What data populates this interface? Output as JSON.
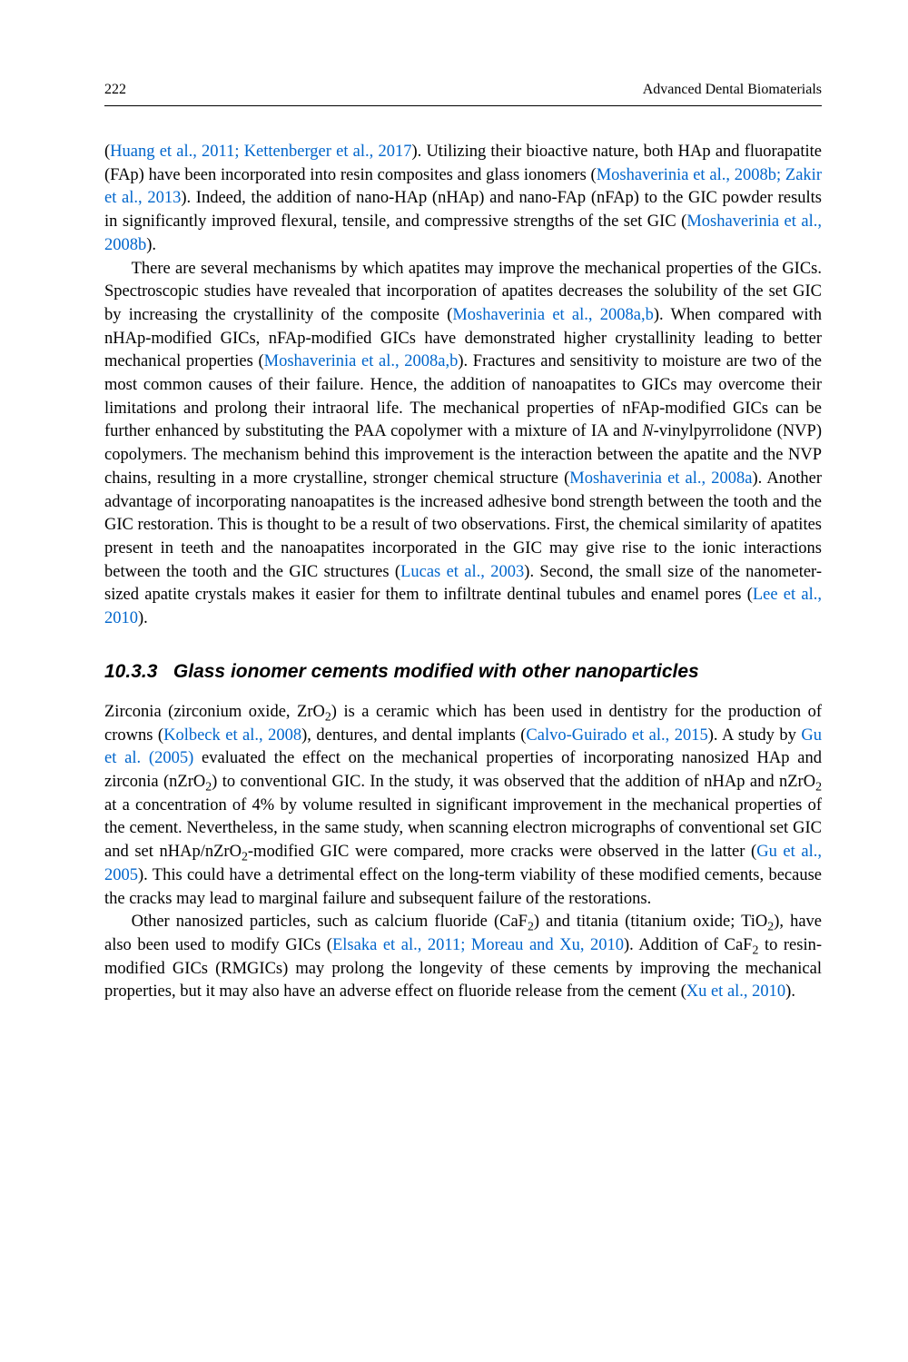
{
  "page": {
    "number": "222",
    "book_title": "Advanced Dental Biomaterials"
  },
  "section": {
    "number": "10.3.3",
    "title": "Glass ionomer cements modified with other nanoparticles"
  },
  "citations": {
    "huang2011": "Huang et al., 2011; Kettenberger et al., 2017",
    "moshaverinia2008b_zakir": "Moshaverinia et al., 2008b; Zakir et al., 2013",
    "moshaverinia2008b": "Moshaverinia et al., 2008b",
    "moshaverinia2008ab_1": "Moshaverinia et al., 2008a,b",
    "moshaverinia2008ab_2": "Moshaverinia et al., 2008a,b",
    "moshaverinia2008a": "Moshaverinia et al., 2008a",
    "lucas2003": "Lucas et al., 2003",
    "lee2010": "Lee et al., 2010",
    "kolbeck2008": "Kolbeck et al., 2008",
    "calvo2015": "Calvo-Guirado et al., 2015",
    "gu2005_inline": "Gu et al. (2005)",
    "gu2005": "Gu et al., 2005",
    "elsaka2011": "Elsaka et al., 2011; Moreau and Xu, 2010",
    "xu2010": "Xu et al., 2010"
  },
  "text": {
    "p1_a": "(",
    "p1_b": "). Utilizing their bioactive nature, both HAp and fluorapatite (FAp) have been incorporated into resin composites and glass ionomers (",
    "p1_c": "). Indeed, the addition of nano-HAp (nHAp) and nano-FAp (nFAp) to the GIC powder results in significantly improved flexural, tensile, and compressive strengths of the set GIC (",
    "p1_d": ").",
    "p2_a": "There are several mechanisms by which apatites may improve the mechanical properties of the GICs. Spectroscopic studies have revealed that incorporation of apatites decreases the solubility of the set GIC by increasing the crystallinity of the composite (",
    "p2_b": "). When compared with nHAp-modified GICs, nFAp-modified GICs have demonstrated higher crystallinity leading to better mechanical properties (",
    "p2_c": "). Fractures and sensitivity to moisture are two of the most common causes of their failure. Hence, the addition of nanoapatites to GICs may overcome their limitations and prolong their intraoral life. The mechanical properties of nFAp-modified GICs can be further enhanced by substituting the PAA copolymer with a mixture of IA and ",
    "p2_d": "N",
    "p2_e": "-vinylpyrrolidone (NVP) copolymers. The mechanism behind this improvement is the interaction between the apatite and the NVP chains, resulting in a more crystalline, stronger chemical structure (",
    "p2_f": "). Another advantage of incorporating nanoapatites is the increased adhesive bond strength between the tooth and the GIC restoration. This is thought to be a result of two observations. First, the chemical similarity of apatites present in teeth and the nanoapatites incorporated in the GIC may give rise to the ionic interactions between the tooth and the GIC structures (",
    "p2_g": "). Second, the small size of the nanometer-sized apatite crystals makes it easier for them to infiltrate dentinal tubules and enamel pores (",
    "p2_h": ").",
    "p3_a": "Zirconia (zirconium oxide, ZrO",
    "p3_a_sub": "2",
    "p3_b": ") is a ceramic which has been used in dentistry for the production of crowns (",
    "p3_c": "), dentures, and dental implants (",
    "p3_d": "). A study by ",
    "p3_e": " evaluated the effect on the mechanical properties of incorporating nanosized HAp and zirconia (nZrO",
    "p3_e_sub": "2",
    "p3_f": ") to conventional GIC. In the study, it was observed that the addition of nHAp and nZrO",
    "p3_f_sub": "2",
    "p3_g": " at a concentration of 4% by volume resulted in significant improvement in the mechanical properties of the cement. Nevertheless, in the same study, when scanning electron micrographs of conventional set GIC and set nHAp/nZrO",
    "p3_g_sub": "2",
    "p3_h": "-modified GIC were compared, more cracks were observed in the latter (",
    "p3_i": "). This could have a detrimental effect on the long-term viability of these modified cements, because the cracks may lead to marginal failure and subsequent failure of the restorations.",
    "p4_a": "Other nanosized particles, such as calcium fluoride (CaF",
    "p4_a_sub": "2",
    "p4_b": ") and titania (titanium oxide; TiO",
    "p4_b_sub": "2",
    "p4_c": "), have also been used to modify GICs (",
    "p4_d": "). Addition of CaF",
    "p4_d_sub": "2",
    "p4_e": " to resin-modified GICs (RMGICs) may prolong the longevity of these cements by improving the mechanical properties, but it may also have an adverse effect on fluoride release from the cement (",
    "p4_f": ")."
  },
  "styling": {
    "body_fontsize": 18.5,
    "heading_fontsize": 21,
    "header_fontsize": 16,
    "cite_color": "#0066cc",
    "text_color": "#000000",
    "background_color": "#ffffff",
    "line_height": 1.39,
    "font_family_body": "Georgia, Times New Roman, serif",
    "font_family_heading": "Arial, Helvetica, sans-serif"
  }
}
